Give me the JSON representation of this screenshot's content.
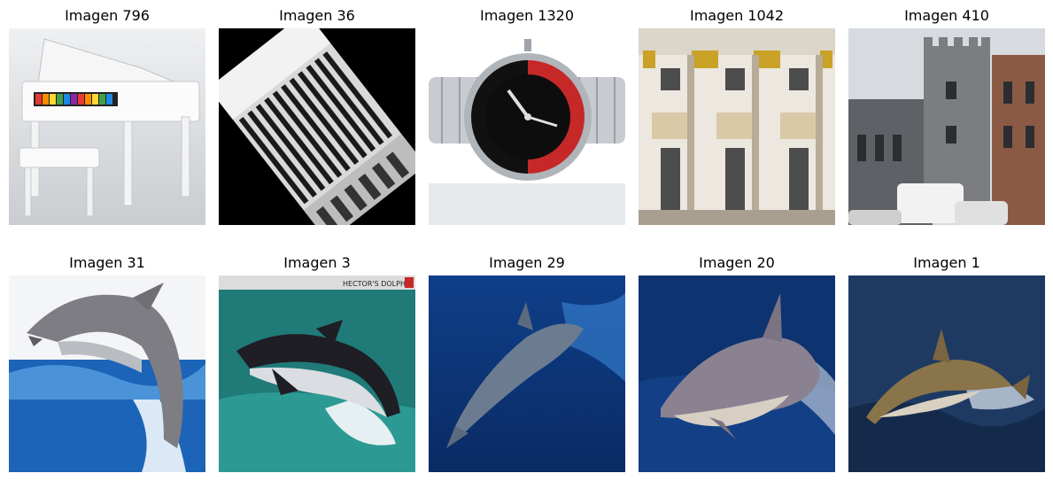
{
  "grid": {
    "rows": 2,
    "columns": 5,
    "images": [
      {
        "caption": "Imagen 796",
        "subject": "white toy grand piano with bench"
      },
      {
        "caption": "Imagen 36",
        "subject": "accordion close-up on black background"
      },
      {
        "caption": "Imagen 1320",
        "subject": "wristwatch with black and red bezel"
      },
      {
        "caption": "Imagen 1042",
        "subject": "baroque building facade"
      },
      {
        "caption": "Imagen 410",
        "subject": "stone castle tower with parked van"
      },
      {
        "caption": "Imagen 31",
        "subject": "dolphin leaping from blue water"
      },
      {
        "caption": "Imagen 3",
        "subject": "black and white dolphin jumping",
        "printed_text": "HECTOR'S DOLPHIN"
      },
      {
        "caption": "Imagen 29",
        "subject": "dolphin underwater"
      },
      {
        "caption": "Imagen 20",
        "subject": "dolphin surfacing"
      },
      {
        "caption": "Imagen 1",
        "subject": "dolphin jumping over dark water"
      }
    ]
  }
}
